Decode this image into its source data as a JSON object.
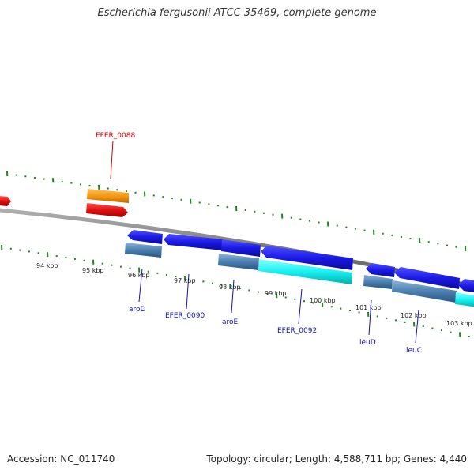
{
  "title": "Escherichia fergusonii ATCC 35469, complete genome",
  "footer": {
    "accession": "Accession: NC_011740",
    "summary": "Topology: circular; Length: 4,588,711 bp; Genes: 4,440"
  },
  "colors": {
    "backbone": "#808080",
    "tick": "#1a8a1a",
    "cds_forward": "#e11010",
    "gene_forward": "#f59a10",
    "cds_reverse": "#1a1ae6",
    "gene_reverse": "#4a7fb0",
    "rna": "#19f0f0",
    "label_forward": "#cc0000",
    "label_reverse": "#1010b0"
  },
  "kbp_ticks": [
    "94 kbp",
    "95 kbp",
    "96 kbp",
    "97 kbp",
    "98 kbp",
    "99 kbp",
    "100 kbp",
    "101 kbp",
    "102 kbp",
    "103 kbp"
  ],
  "gene_labels": [
    {
      "text": "EFER_0088",
      "strand": "forward"
    },
    {
      "text": "aroD",
      "strand": "reverse"
    },
    {
      "text": "EFER_0090",
      "strand": "reverse"
    },
    {
      "text": "aroE",
      "strand": "reverse"
    },
    {
      "text": "EFER_0092",
      "strand": "reverse"
    },
    {
      "text": "leuD",
      "strand": "reverse"
    },
    {
      "text": "leuC",
      "strand": "reverse"
    }
  ]
}
